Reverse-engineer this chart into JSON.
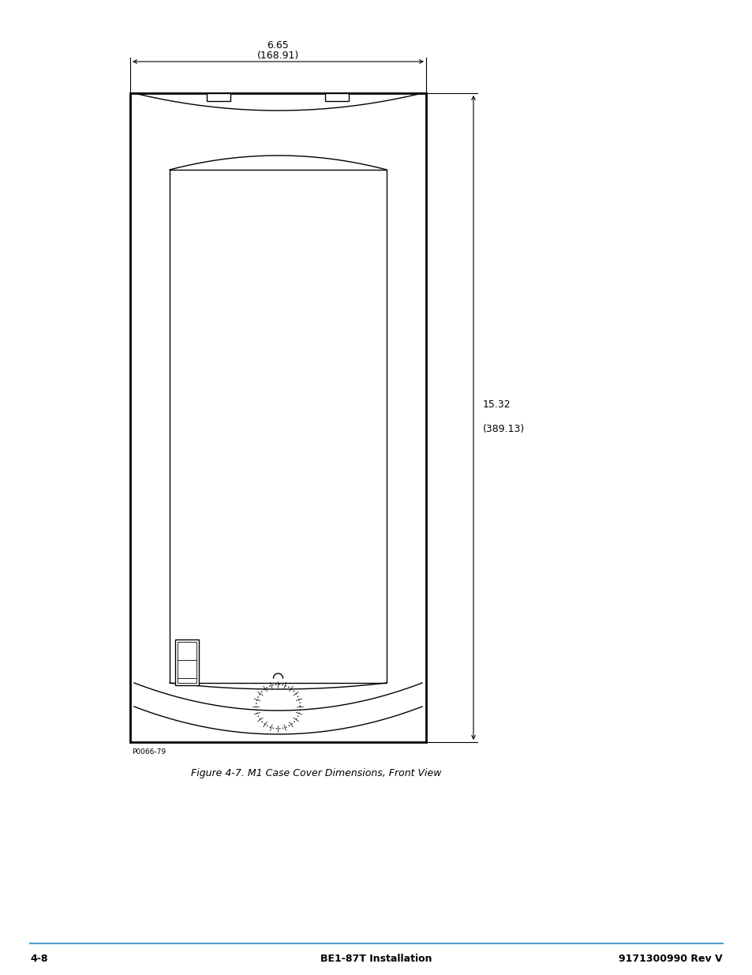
{
  "bg_color": "#ffffff",
  "line_color": "#000000",
  "fig_width": 9.54,
  "fig_height": 12.35,
  "title": "Figure 4-7. M1 Case Cover Dimensions, Front View",
  "footer_left": "4-8",
  "footer_center": "BE1-87T Installation",
  "footer_right": "9171300990 Rev V",
  "footer_line_color": "#4fa0c8",
  "part_number": "P0066-79",
  "width_dim_label": "6.65",
  "width_dim_sublabel": "(168.91)",
  "height_dim_label": "15.32",
  "height_dim_sublabel": "(389.13)"
}
